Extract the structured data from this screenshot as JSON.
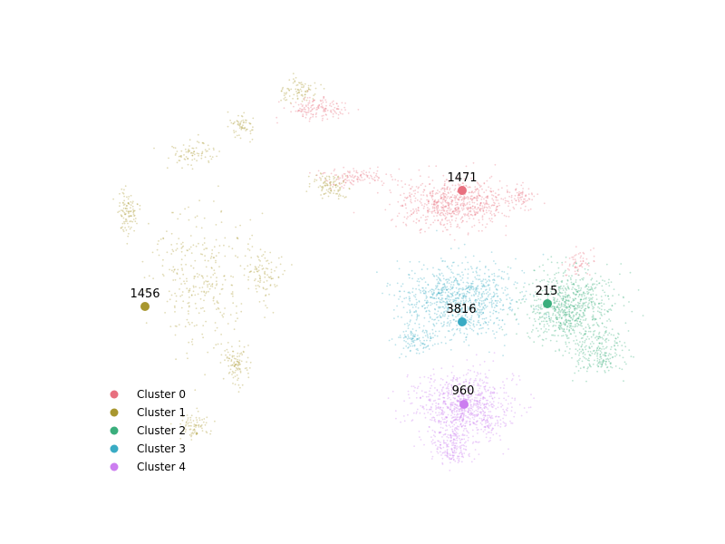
{
  "chart_data": {
    "type": "scatter",
    "title": "",
    "xlabel": "",
    "ylabel": "",
    "axes_visible": false,
    "legend_placement": "lower-left",
    "point_alpha": 0.35,
    "clusters": [
      {
        "name": "Cluster 0",
        "color": "#e8707f",
        "centroid_label": "1471"
      },
      {
        "name": "Cluster 1",
        "color": "#a8972f",
        "centroid_label": "1456"
      },
      {
        "name": "Cluster 2",
        "color": "#3aae7c",
        "centroid_label": "215"
      },
      {
        "name": "Cluster 3",
        "color": "#39abc4",
        "centroid_label": "3816"
      },
      {
        "name": "Cluster 4",
        "color": "#cc7ef0",
        "centroid_label": "960"
      }
    ]
  }
}
